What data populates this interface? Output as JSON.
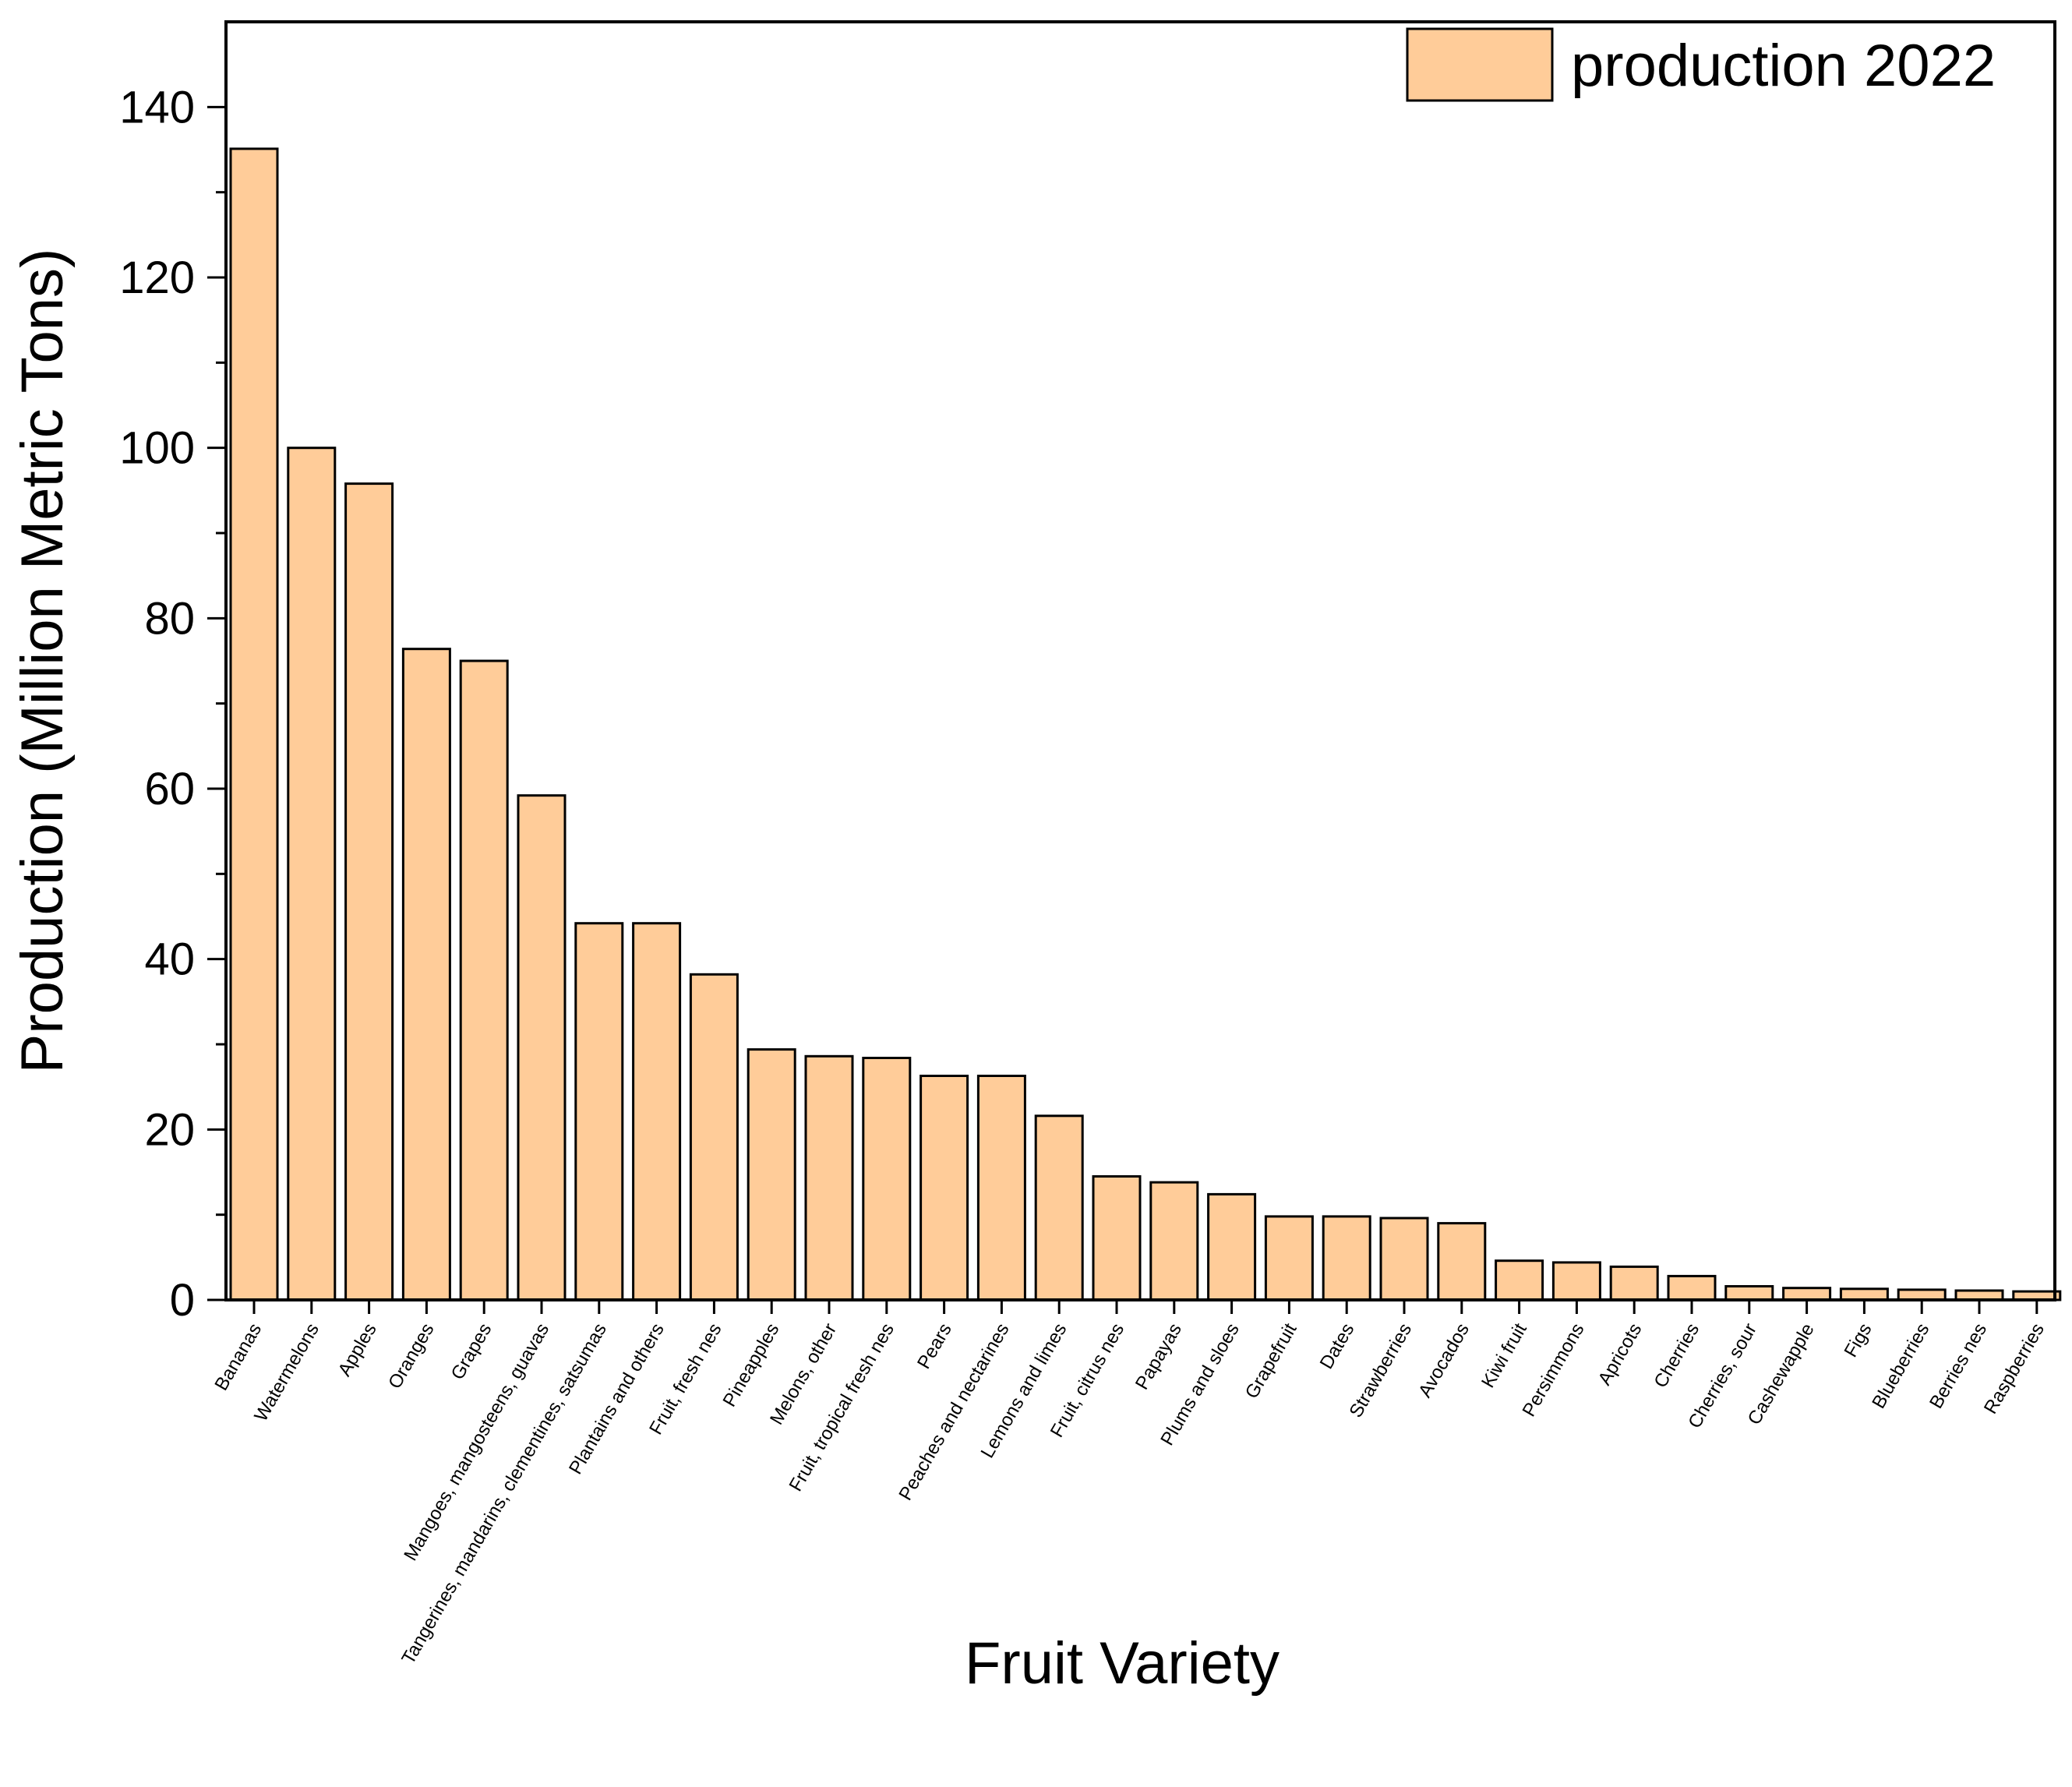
{
  "chart_data": {
    "type": "bar",
    "title": "",
    "xlabel": "Fruit Variety",
    "ylabel": "Production (Million Metric Tons)",
    "ylim": [
      0,
      150
    ],
    "yticks": [
      "0",
      "20",
      "40",
      "60",
      "80",
      "100",
      "120",
      "140"
    ],
    "grid": false,
    "legend_position": "top-right",
    "categories": [
      "Bananas",
      "Watermelons",
      "Apples",
      "Oranges",
      "Grapes",
      "Mangoes, mangosteens, guavas",
      "Tangerines, mandarins, clementines, satsumas",
      "Plantains and others",
      "Fruit, fresh nes",
      "Pineapples",
      "Melons, other",
      "Fruit, tropical fresh nes",
      "Pears",
      "Peaches and nectarines",
      "Lemons and limes",
      "Fruit, citrus nes",
      "Papayas",
      "Plums and sloes",
      "Grapefruit",
      "Dates",
      "Strawberries",
      "Avocados",
      "Kiwi fruit",
      "Persimmons",
      "Apricots",
      "Cherries",
      "Cherries, sour",
      "Cashewapple",
      "Figs",
      "Blueberries",
      "Berries nes",
      "Raspberries"
    ],
    "series": [
      {
        "name": "production 2022",
        "color": "#FFCC99",
        "values": [
          135.1,
          100.0,
          95.8,
          76.4,
          75.0,
          59.2,
          44.2,
          44.2,
          38.2,
          29.4,
          28.6,
          28.4,
          26.3,
          26.3,
          21.6,
          14.5,
          13.8,
          12.4,
          9.8,
          9.8,
          9.6,
          9.0,
          4.6,
          4.4,
          3.9,
          2.8,
          1.6,
          1.4,
          1.3,
          1.2,
          1.1,
          1.0
        ]
      }
    ]
  }
}
